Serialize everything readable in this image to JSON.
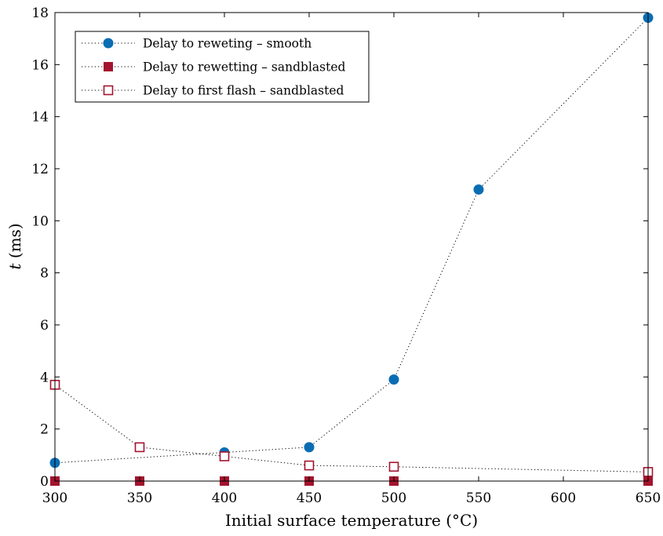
{
  "chart_data": {
    "type": "scatter",
    "xlabel": "Initial surface temperature (°C)",
    "ylabel_italic": "t",
    "ylabel_rest": " (ms)",
    "xlim": [
      300,
      650
    ],
    "ylim": [
      0,
      18
    ],
    "xticks": [
      300,
      350,
      400,
      450,
      500,
      550,
      600,
      650
    ],
    "yticks": [
      0,
      2,
      4,
      6,
      8,
      10,
      12,
      14,
      16,
      18
    ],
    "grid": false,
    "legend_position": "top-left",
    "series": [
      {
        "name": "Delay to reweting – smooth",
        "marker": "circle-filled",
        "color": "#0a6db3",
        "line": "dotted",
        "x": [
          300,
          400,
          450,
          500,
          550,
          650
        ],
        "y": [
          0.7,
          1.1,
          1.3,
          3.9,
          11.2,
          17.8
        ]
      },
      {
        "name": "Delay to rewetting – sandblasted",
        "marker": "square-filled",
        "color": "#a3142e",
        "line": "dotted",
        "x": [
          300,
          350,
          400,
          450,
          500,
          650
        ],
        "y": [
          0,
          0,
          0,
          0,
          0,
          0
        ]
      },
      {
        "name": "Delay to first flash – sandblasted",
        "marker": "square-open",
        "color": "#a3142e",
        "line": "dotted",
        "x": [
          300,
          350,
          400,
          450,
          500,
          650
        ],
        "y": [
          3.7,
          1.3,
          0.95,
          0.6,
          0.55,
          0.35
        ]
      }
    ]
  }
}
